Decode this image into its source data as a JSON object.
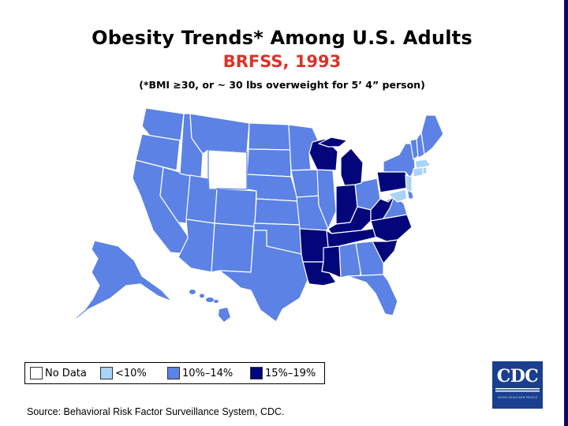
{
  "title": "Obesity Trends* Among U.S. Adults",
  "subtitle": "BRFSS, 1993",
  "footnote": "(*BMI ≥30, or ~ 30 lbs overweight for 5’ 4” person)",
  "legend": [
    {
      "label": "No Data",
      "color": "#ffffff"
    },
    {
      "label": "<10%",
      "color": "#a9d3f7"
    },
    {
      "label": "10%–14%",
      "color": "#5b82e4"
    },
    {
      "label": "15%–19%",
      "color": "#02067a"
    }
  ],
  "map": {
    "no_data": [
      "Wyoming"
    ],
    "below_10": [
      "Massachusetts",
      "Connecticut",
      "Rhode Island",
      "New Jersey",
      "Maryland"
    ],
    "range_10_14": [
      "Washington",
      "Oregon",
      "California",
      "Nevada",
      "Idaho",
      "Montana",
      "Utah",
      "Arizona",
      "Colorado",
      "New Mexico",
      "North Dakota",
      "South Dakota",
      "Nebraska",
      "Kansas",
      "Oklahoma",
      "Texas",
      "Minnesota",
      "Iowa",
      "Missouri",
      "Illinois",
      "Ohio",
      "Virginia",
      "Georgia",
      "Florida",
      "Alabama",
      "New York",
      "Vermont",
      "New Hampshire",
      "Maine",
      "Delaware",
      "Alaska",
      "Hawaii"
    ],
    "range_15_19": [
      "Wisconsin",
      "Michigan",
      "Indiana",
      "Kentucky",
      "West Virginia",
      "Pennsylvania",
      "Tennessee",
      "North Carolina",
      "South Carolina",
      "Arkansas",
      "Louisiana",
      "Mississippi"
    ]
  },
  "source": "Source: Behavioral Risk Factor Surveillance System, CDC.",
  "logo": {
    "text": "CDC",
    "tagline": "SAFER·HEALTHIER·PEOPLE"
  }
}
